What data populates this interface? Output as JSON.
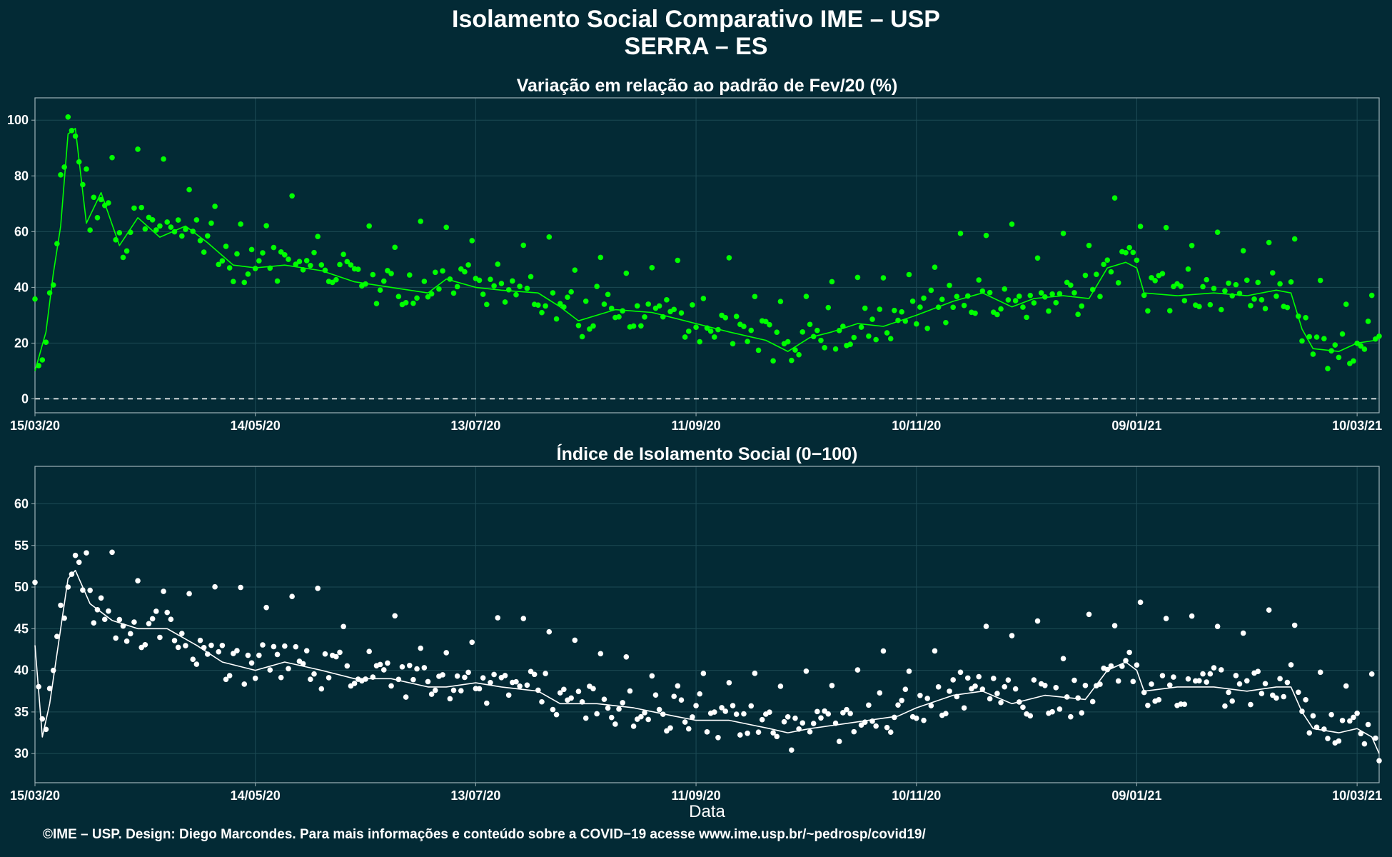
{
  "title": "Isolamento Social Comparativo IME – USP",
  "subtitle": "SERRA – ES",
  "footer": "©IME – USP. Design: Diego Marcondes. Para mais informações e conteúdo sobre a COVID−19 acesse www.ime.usp.br/~pedrosp/covid19/",
  "colors": {
    "background": "#032a35",
    "top_series": "#00ff00",
    "bottom_series": "#ffffff",
    "grid": "#1d4a55",
    "axis": "#9fb3b8"
  },
  "chart_data": [
    {
      "type": "scatter",
      "title": "Variação em relação ao padrão de Fev/20 (%)",
      "xlabel": "",
      "ylabel": "",
      "x_range": [
        "2020-03-15",
        "2021-03-16"
      ],
      "ylim": [
        -5,
        108
      ],
      "yticks": [
        0,
        20,
        40,
        60,
        80,
        100
      ],
      "xticks": [
        "15/03/20",
        "14/05/20",
        "13/07/20",
        "11/09/20",
        "10/11/20",
        "09/01/21",
        "10/03/21"
      ],
      "reference_line": 0,
      "grid": true,
      "series": [
        {
          "style": "points + 7-day moving average line",
          "color": "#00ff00",
          "anchors": [
            [
              "2020-03-15",
              10
            ],
            [
              "2020-03-18",
              24
            ],
            [
              "2020-03-20",
              45
            ],
            [
              "2020-03-22",
              62
            ],
            [
              "2020-03-24",
              95
            ],
            [
              "2020-03-26",
              97
            ],
            [
              "2020-03-29",
              63
            ],
            [
              "2020-04-02",
              74
            ],
            [
              "2020-04-07",
              55
            ],
            [
              "2020-04-12",
              65
            ],
            [
              "2020-04-18",
              58
            ],
            [
              "2020-04-25",
              62
            ],
            [
              "2020-05-01",
              56
            ],
            [
              "2020-05-08",
              48
            ],
            [
              "2020-05-14",
              47
            ],
            [
              "2020-05-22",
              48
            ],
            [
              "2020-06-01",
              46
            ],
            [
              "2020-06-10",
              42
            ],
            [
              "2020-06-20",
              40
            ],
            [
              "2020-06-30",
              38
            ],
            [
              "2020-07-05",
              43
            ],
            [
              "2020-07-13",
              40
            ],
            [
              "2020-07-20",
              39
            ],
            [
              "2020-07-30",
              38
            ],
            [
              "2020-08-05",
              33
            ],
            [
              "2020-08-10",
              28
            ],
            [
              "2020-08-15",
              30
            ],
            [
              "2020-08-20",
              32
            ],
            [
              "2020-08-30",
              31
            ],
            [
              "2020-09-05",
              29
            ],
            [
              "2020-09-11",
              27
            ],
            [
              "2020-09-20",
              24
            ],
            [
              "2020-09-30",
              21
            ],
            [
              "2020-10-06",
              17
            ],
            [
              "2020-10-12",
              22
            ],
            [
              "2020-10-18",
              24
            ],
            [
              "2020-10-25",
              27
            ],
            [
              "2020-11-01",
              26
            ],
            [
              "2020-11-10",
              30
            ],
            [
              "2020-11-20",
              35
            ],
            [
              "2020-11-28",
              38
            ],
            [
              "2020-12-06",
              33
            ],
            [
              "2020-12-12",
              36
            ],
            [
              "2020-12-20",
              37
            ],
            [
              "2020-12-27",
              36
            ],
            [
              "2021-01-01",
              47
            ],
            [
              "2021-01-06",
              49
            ],
            [
              "2021-01-09",
              47
            ],
            [
              "2021-01-11",
              38
            ],
            [
              "2021-01-20",
              37
            ],
            [
              "2021-01-30",
              38
            ],
            [
              "2021-02-08",
              37
            ],
            [
              "2021-02-16",
              39
            ],
            [
              "2021-02-20",
              38
            ],
            [
              "2021-02-23",
              25
            ],
            [
              "2021-02-26",
              18
            ],
            [
              "2021-03-05",
              17
            ],
            [
              "2021-03-10",
              20
            ],
            [
              "2021-03-15",
              21
            ]
          ]
        }
      ]
    },
    {
      "type": "scatter",
      "title": "Índice de Isolamento Social (0−100)",
      "xlabel": "Data",
      "ylabel": "",
      "x_range": [
        "2020-03-15",
        "2021-03-16"
      ],
      "ylim": [
        26.5,
        64.5
      ],
      "yticks": [
        30,
        35,
        40,
        45,
        50,
        55,
        60
      ],
      "xticks": [
        "15/03/20",
        "14/05/20",
        "13/07/20",
        "11/09/20",
        "10/11/20",
        "09/01/21",
        "10/03/21"
      ],
      "grid": true,
      "series": [
        {
          "style": "points + 7-day moving average line",
          "color": "#ffffff",
          "anchors": [
            [
              "2020-03-15",
              43
            ],
            [
              "2020-03-17",
              32
            ],
            [
              "2020-03-19",
              36
            ],
            [
              "2020-03-22",
              45
            ],
            [
              "2020-03-24",
              51
            ],
            [
              "2020-03-26",
              52
            ],
            [
              "2020-03-30",
              48
            ],
            [
              "2020-04-05",
              46
            ],
            [
              "2020-04-12",
              45
            ],
            [
              "2020-04-20",
              45
            ],
            [
              "2020-04-28",
              43
            ],
            [
              "2020-05-05",
              41
            ],
            [
              "2020-05-14",
              40
            ],
            [
              "2020-05-22",
              41
            ],
            [
              "2020-06-01",
              40
            ],
            [
              "2020-06-10",
              39
            ],
            [
              "2020-06-20",
              39
            ],
            [
              "2020-06-30",
              38
            ],
            [
              "2020-07-05",
              38
            ],
            [
              "2020-07-13",
              38.5
            ],
            [
              "2020-07-20",
              38
            ],
            [
              "2020-07-30",
              37.5
            ],
            [
              "2020-08-05",
              36
            ],
            [
              "2020-08-15",
              36
            ],
            [
              "2020-08-25",
              35.5
            ],
            [
              "2020-09-05",
              34.5
            ],
            [
              "2020-09-11",
              34
            ],
            [
              "2020-09-20",
              34
            ],
            [
              "2020-10-01",
              33
            ],
            [
              "2020-10-06",
              32.5
            ],
            [
              "2020-10-12",
              33
            ],
            [
              "2020-10-20",
              33.5
            ],
            [
              "2020-10-28",
              34
            ],
            [
              "2020-11-05",
              34.5
            ],
            [
              "2020-11-10",
              35.5
            ],
            [
              "2020-11-20",
              37
            ],
            [
              "2020-11-28",
              37.5
            ],
            [
              "2020-12-06",
              36
            ],
            [
              "2020-12-15",
              37
            ],
            [
              "2020-12-26",
              36.5
            ],
            [
              "2021-01-01",
              40
            ],
            [
              "2021-01-06",
              41
            ],
            [
              "2021-01-09",
              40
            ],
            [
              "2021-01-11",
              37.5
            ],
            [
              "2021-01-20",
              38
            ],
            [
              "2021-01-30",
              38
            ],
            [
              "2021-02-08",
              37.5
            ],
            [
              "2021-02-16",
              38
            ],
            [
              "2021-02-20",
              38
            ],
            [
              "2021-02-23",
              35
            ],
            [
              "2021-02-26",
              33
            ],
            [
              "2021-03-05",
              32.5
            ],
            [
              "2021-03-10",
              33
            ],
            [
              "2021-03-14",
              32
            ],
            [
              "2021-03-16",
              30
            ]
          ]
        }
      ]
    }
  ]
}
